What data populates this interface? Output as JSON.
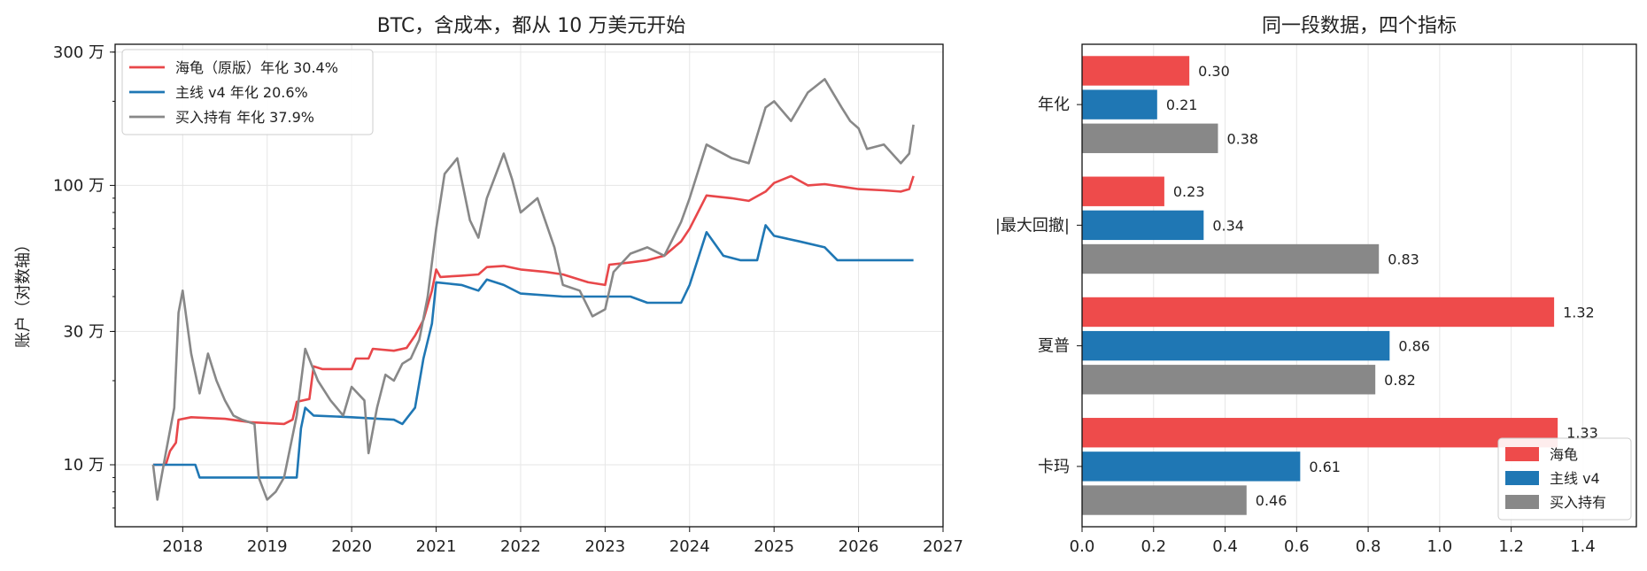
{
  "chart_data": [
    {
      "type": "line",
      "title": "BTC，含成本，都从 10 万美元开始",
      "xlabel": "",
      "ylabel": "账户（对数轴）",
      "yscale": "log",
      "xlim": [
        2017.2,
        2027.0
      ],
      "ylim": [
        60000,
        3200000
      ],
      "x_ticks": [
        "2018",
        "2019",
        "2020",
        "2021",
        "2022",
        "2023",
        "2024",
        "2025",
        "2026",
        "2027"
      ],
      "y_ticks": [
        {
          "value": 100000,
          "label": "10 万"
        },
        {
          "value": 300000,
          "label": "30 万"
        },
        {
          "value": 1000000,
          "label": "100 万"
        },
        {
          "value": 3000000,
          "label": "300 万"
        }
      ],
      "grid": true,
      "legend_position": "top-left",
      "series": [
        {
          "name": "海龟（原版）年化 30.4%",
          "color": "#e8474a",
          "points": [
            [
              2017.65,
              100000
            ],
            [
              2017.8,
              100000
            ],
            [
              2017.85,
              112000
            ],
            [
              2017.92,
              120000
            ],
            [
              2017.95,
              145000
            ],
            [
              2018.1,
              148000
            ],
            [
              2018.5,
              146000
            ],
            [
              2018.8,
              142000
            ],
            [
              2019.2,
              140000
            ],
            [
              2019.3,
              145000
            ],
            [
              2019.35,
              168000
            ],
            [
              2019.5,
              172000
            ],
            [
              2019.55,
              225000
            ],
            [
              2019.65,
              220000
            ],
            [
              2020.0,
              220000
            ],
            [
              2020.05,
              240000
            ],
            [
              2020.2,
              240000
            ],
            [
              2020.25,
              260000
            ],
            [
              2020.5,
              256000
            ],
            [
              2020.65,
              262000
            ],
            [
              2020.75,
              290000
            ],
            [
              2020.85,
              330000
            ],
            [
              2020.95,
              420000
            ],
            [
              2021.0,
              500000
            ],
            [
              2021.05,
              470000
            ],
            [
              2021.3,
              475000
            ],
            [
              2021.5,
              480000
            ],
            [
              2021.6,
              510000
            ],
            [
              2021.8,
              515000
            ],
            [
              2022.0,
              500000
            ],
            [
              2022.3,
              490000
            ],
            [
              2022.5,
              480000
            ],
            [
              2022.8,
              450000
            ],
            [
              2023.0,
              440000
            ],
            [
              2023.05,
              520000
            ],
            [
              2023.3,
              530000
            ],
            [
              2023.5,
              540000
            ],
            [
              2023.7,
              560000
            ],
            [
              2023.9,
              630000
            ],
            [
              2024.0,
              700000
            ],
            [
              2024.2,
              920000
            ],
            [
              2024.5,
              900000
            ],
            [
              2024.7,
              880000
            ],
            [
              2024.9,
              950000
            ],
            [
              2025.0,
              1020000
            ],
            [
              2025.2,
              1080000
            ],
            [
              2025.4,
              1000000
            ],
            [
              2025.6,
              1010000
            ],
            [
              2025.8,
              990000
            ],
            [
              2026.0,
              970000
            ],
            [
              2026.3,
              960000
            ],
            [
              2026.5,
              950000
            ],
            [
              2026.6,
              970000
            ],
            [
              2026.65,
              1080000
            ]
          ]
        },
        {
          "name": "主线 v4 年化 20.6%",
          "color": "#1f77b4",
          "points": [
            [
              2017.65,
              100000
            ],
            [
              2018.15,
              100000
            ],
            [
              2018.2,
              90000
            ],
            [
              2018.5,
              90000
            ],
            [
              2019.0,
              90000
            ],
            [
              2019.35,
              90000
            ],
            [
              2019.4,
              135000
            ],
            [
              2019.45,
              160000
            ],
            [
              2019.55,
              150000
            ],
            [
              2020.0,
              148000
            ],
            [
              2020.5,
              145000
            ],
            [
              2020.6,
              140000
            ],
            [
              2020.75,
              160000
            ],
            [
              2020.85,
              240000
            ],
            [
              2020.95,
              320000
            ],
            [
              2021.0,
              450000
            ],
            [
              2021.3,
              440000
            ],
            [
              2021.5,
              420000
            ],
            [
              2021.6,
              460000
            ],
            [
              2021.8,
              440000
            ],
            [
              2022.0,
              410000
            ],
            [
              2022.5,
              400000
            ],
            [
              2023.0,
              400000
            ],
            [
              2023.3,
              400000
            ],
            [
              2023.5,
              380000
            ],
            [
              2023.9,
              380000
            ],
            [
              2024.0,
              440000
            ],
            [
              2024.2,
              680000
            ],
            [
              2024.4,
              560000
            ],
            [
              2024.6,
              540000
            ],
            [
              2024.8,
              540000
            ],
            [
              2024.9,
              720000
            ],
            [
              2025.0,
              660000
            ],
            [
              2025.3,
              630000
            ],
            [
              2025.6,
              600000
            ],
            [
              2025.75,
              540000
            ],
            [
              2026.0,
              540000
            ],
            [
              2026.65,
              540000
            ]
          ]
        },
        {
          "name": "买入持有 年化 37.9%",
          "color": "#888888",
          "points": [
            [
              2017.65,
              100000
            ],
            [
              2017.7,
              75000
            ],
            [
              2017.8,
              110000
            ],
            [
              2017.9,
              160000
            ],
            [
              2017.95,
              350000
            ],
            [
              2018.0,
              420000
            ],
            [
              2018.1,
              250000
            ],
            [
              2018.2,
              180000
            ],
            [
              2018.3,
              250000
            ],
            [
              2018.4,
              200000
            ],
            [
              2018.5,
              170000
            ],
            [
              2018.6,
              150000
            ],
            [
              2018.7,
              145000
            ],
            [
              2018.85,
              140000
            ],
            [
              2018.9,
              90000
            ],
            [
              2019.0,
              75000
            ],
            [
              2019.1,
              80000
            ],
            [
              2019.2,
              90000
            ],
            [
              2019.35,
              150000
            ],
            [
              2019.45,
              260000
            ],
            [
              2019.6,
              200000
            ],
            [
              2019.75,
              170000
            ],
            [
              2019.9,
              150000
            ],
            [
              2020.0,
              190000
            ],
            [
              2020.15,
              170000
            ],
            [
              2020.2,
              110000
            ],
            [
              2020.3,
              160000
            ],
            [
              2020.4,
              210000
            ],
            [
              2020.5,
              200000
            ],
            [
              2020.6,
              230000
            ],
            [
              2020.7,
              240000
            ],
            [
              2020.8,
              280000
            ],
            [
              2020.9,
              400000
            ],
            [
              2021.0,
              700000
            ],
            [
              2021.1,
              1100000
            ],
            [
              2021.25,
              1250000
            ],
            [
              2021.4,
              750000
            ],
            [
              2021.5,
              650000
            ],
            [
              2021.6,
              900000
            ],
            [
              2021.8,
              1300000
            ],
            [
              2021.9,
              1050000
            ],
            [
              2022.0,
              800000
            ],
            [
              2022.2,
              900000
            ],
            [
              2022.4,
              600000
            ],
            [
              2022.5,
              440000
            ],
            [
              2022.7,
              420000
            ],
            [
              2022.85,
              340000
            ],
            [
              2023.0,
              360000
            ],
            [
              2023.1,
              490000
            ],
            [
              2023.3,
              570000
            ],
            [
              2023.5,
              600000
            ],
            [
              2023.7,
              560000
            ],
            [
              2023.9,
              740000
            ],
            [
              2024.0,
              900000
            ],
            [
              2024.2,
              1400000
            ],
            [
              2024.5,
              1250000
            ],
            [
              2024.7,
              1200000
            ],
            [
              2024.9,
              1900000
            ],
            [
              2025.0,
              2000000
            ],
            [
              2025.2,
              1700000
            ],
            [
              2025.4,
              2150000
            ],
            [
              2025.6,
              2400000
            ],
            [
              2025.8,
              1900000
            ],
            [
              2025.9,
              1700000
            ],
            [
              2026.0,
              1600000
            ],
            [
              2026.1,
              1350000
            ],
            [
              2026.3,
              1400000
            ],
            [
              2026.5,
              1200000
            ],
            [
              2026.6,
              1300000
            ],
            [
              2026.65,
              1650000
            ]
          ]
        }
      ]
    },
    {
      "type": "bar",
      "orientation": "horizontal",
      "title": "同一段数据，四个指标",
      "categories": [
        "年化",
        "|最大回撤|",
        "夏普",
        "卡玛"
      ],
      "xlim": [
        0,
        1.55
      ],
      "x_ticks": [
        "0.0",
        "0.2",
        "0.4",
        "0.6",
        "0.8",
        "1.0",
        "1.2",
        "1.4"
      ],
      "grid": true,
      "legend_position": "bottom-right",
      "series": [
        {
          "name": "海龟",
          "color": "#ee4b4b",
          "values": [
            0.3,
            0.23,
            1.32,
            1.33
          ],
          "labels": [
            "0.30",
            "0.23",
            "1.32",
            "1.33"
          ]
        },
        {
          "name": "主线 v4",
          "color": "#1f77b4",
          "values": [
            0.21,
            0.34,
            0.86,
            0.61
          ],
          "labels": [
            "0.21",
            "0.34",
            "0.86",
            "0.61"
          ]
        },
        {
          "name": "买入持有",
          "color": "#888888",
          "values": [
            0.38,
            0.83,
            0.82,
            0.46
          ],
          "labels": [
            "0.38",
            "0.83",
            "0.82",
            "0.46"
          ]
        }
      ]
    }
  ]
}
